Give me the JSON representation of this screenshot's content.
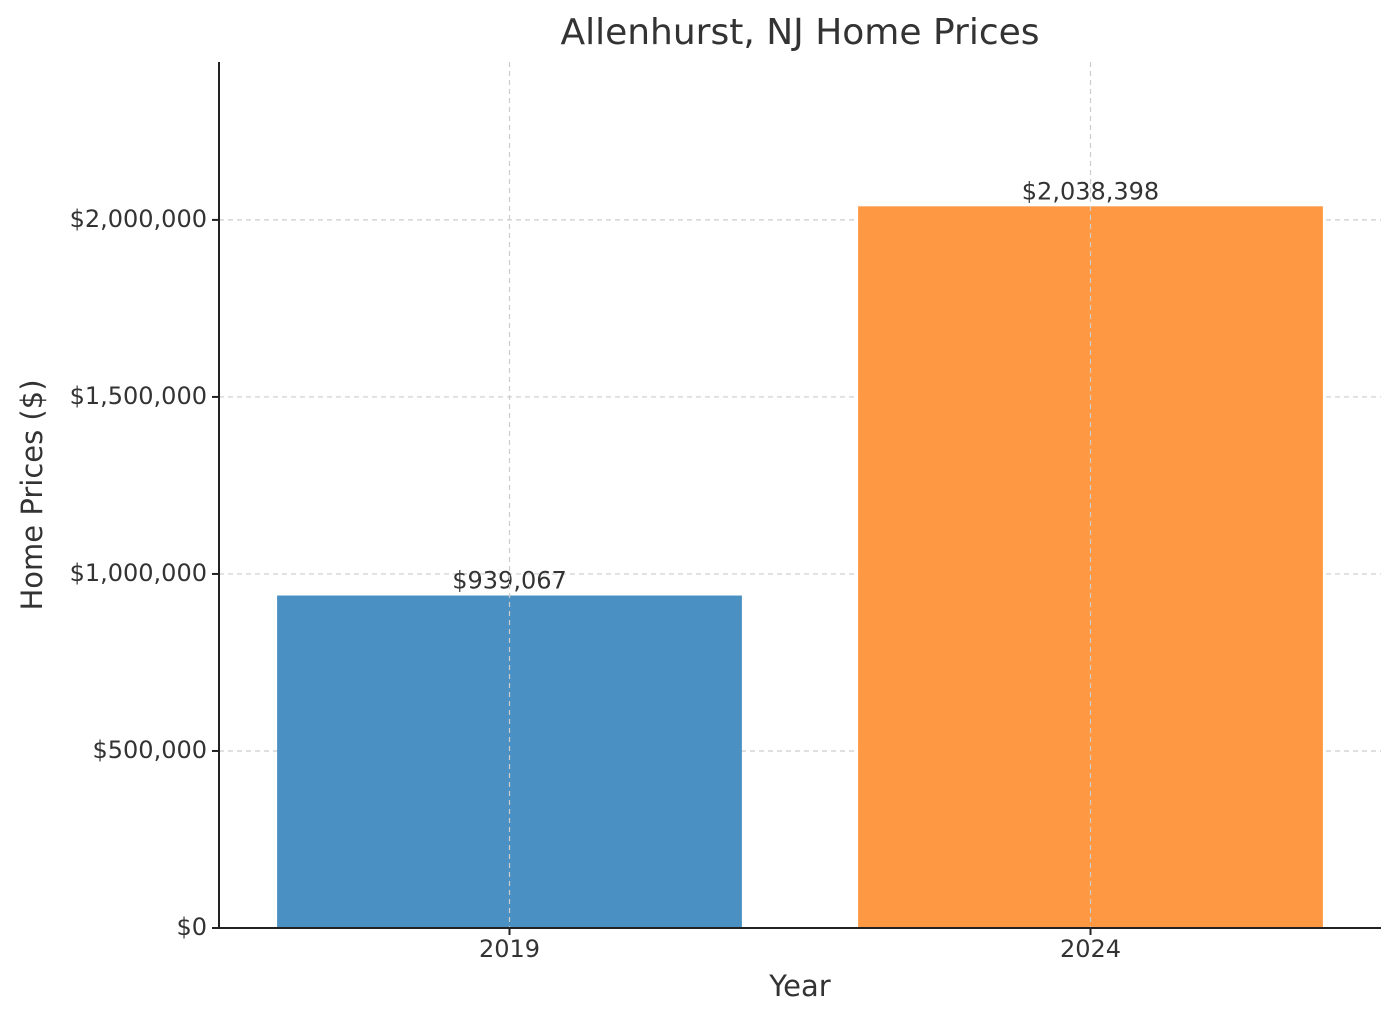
{
  "chart_data": {
    "type": "bar",
    "title": "Allenhurst, NJ Home Prices",
    "x_label": "Year",
    "y_label": "Home Prices ($)",
    "categories": [
      "2019",
      "2024"
    ],
    "values": [
      939067,
      2038398
    ],
    "value_labels": [
      "$939,067",
      "$2,038,398"
    ],
    "colors": [
      "#4a90c2",
      "#ff9843"
    ],
    "ylim": [
      0,
      2446000
    ],
    "yticks": [
      {
        "value": 0,
        "label": "$0"
      },
      {
        "value": 500000,
        "label": "$500,000"
      },
      {
        "value": 1000000,
        "label": "$1,000,000"
      },
      {
        "value": 1500000,
        "label": "$1,500,000"
      },
      {
        "value": 2000000,
        "label": "$2,000,000"
      }
    ],
    "grid": true
  }
}
